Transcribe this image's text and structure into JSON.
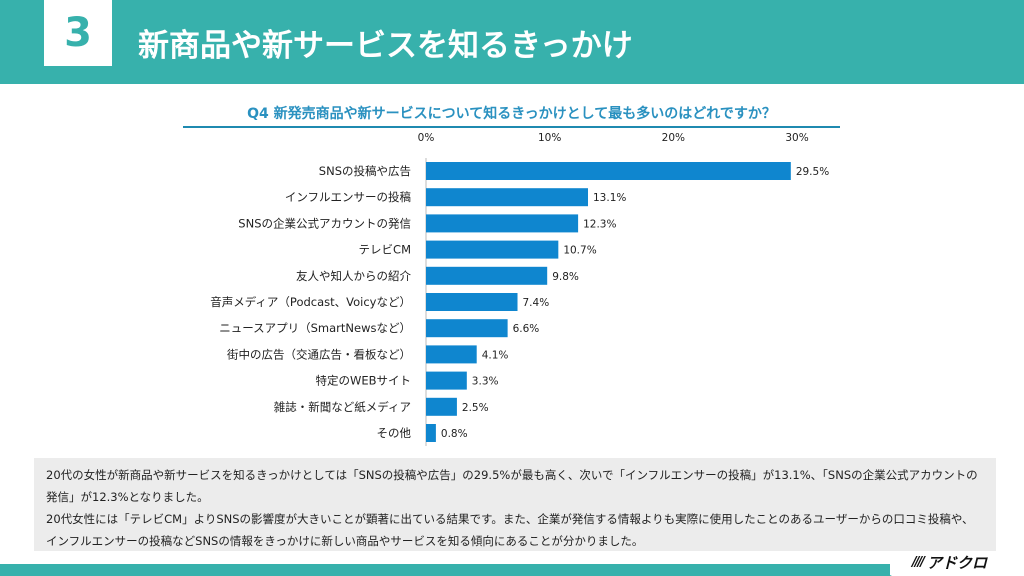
{
  "header": {
    "section_number": "3",
    "title": "新商品や新サービスを知るきっかけ"
  },
  "question": "Q4 新発売商品や新サービスについて知るきっかけとして最も多いのはどれですか？",
  "chart_data": {
    "type": "bar",
    "orientation": "horizontal",
    "title": "Q4 新発売商品や新サービスについて知るきっかけとして最も多いのはどれですか？",
    "xlim": [
      0,
      30
    ],
    "xticks": [
      0,
      10,
      20,
      30
    ],
    "xtick_labels": [
      "0%",
      "10%",
      "20%",
      "30%"
    ],
    "categories": [
      "SNSの投稿や広告",
      "インフルエンサーの投稿",
      "SNSの企業公式アカウントの発信",
      "テレビCM",
      "友人や知人からの紹介",
      "音声メディア（Podcast、Voicyなど）",
      "ニュースアプリ（SmartNewsなど）",
      "街中の広告（交通広告・看板など）",
      "特定のWEBサイト",
      "雑誌・新聞など紙メディア",
      "その他"
    ],
    "values": [
      29.5,
      13.1,
      12.3,
      10.7,
      9.8,
      7.4,
      6.6,
      4.1,
      3.3,
      2.5,
      0.8
    ],
    "value_labels": [
      "29.5%",
      "13.1%",
      "12.3%",
      "10.7%",
      "9.8%",
      "7.4%",
      "6.6%",
      "4.1%",
      "3.3%",
      "2.5%",
      "0.8%"
    ],
    "bar_color": "#0f86cf",
    "grid": false
  },
  "summary": {
    "paragraph1": "20代の女性が新商品や新サービスを知るきっかけとしては「SNSの投稿や広告」の29.5%が最も高く、次いで「インフルエンサーの投稿」が13.1%、「SNSの企業公式アカウントの発信」が12.3%となりました。",
    "paragraph2": "20代女性には「テレビCM」よりSNSの影響度が大きいことが顕著に出ている結果です。また、企業が発信する情報よりも実際に使用したことのあるユーザーからの口コミ投稿や、インフルエンサーの投稿などSNSの情報をきっかけに新しい商品やサービスを知る傾向にあることが分かりました。"
  },
  "logo": {
    "stripes": "////",
    "text": "アドクロ"
  },
  "colors": {
    "accent": "#37b1ac",
    "question_text": "#2a91c0",
    "bar": "#0f86cf"
  }
}
